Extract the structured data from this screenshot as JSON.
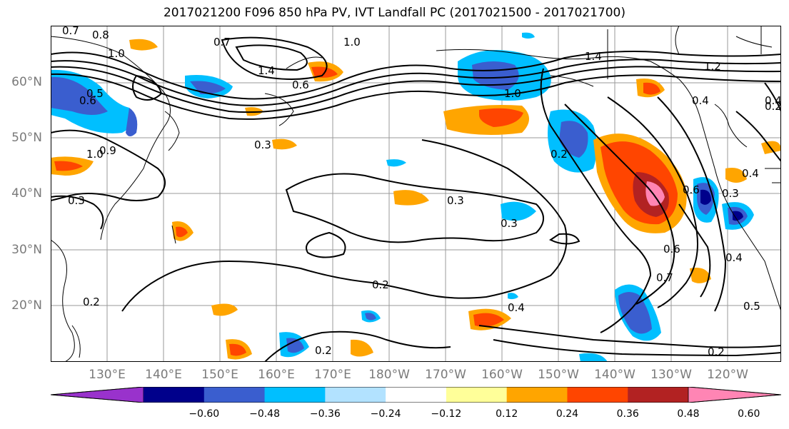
{
  "title": "2017021200 F096 850 hPa PV, IVT Landfall PC (2017021500 - 2017021700)",
  "map": {
    "lat_labels": [
      "60°N",
      "50°N",
      "40°N",
      "30°N",
      "20°N"
    ],
    "lon_labels": [
      "130°E",
      "140°E",
      "150°E",
      "160°E",
      "170°E",
      "180°W",
      "170°W",
      "160°W",
      "150°W",
      "140°W",
      "130°W",
      "120°W"
    ],
    "contour_labels": [
      "0.7",
      "0.8",
      "1.0",
      "0.5",
      "0.6",
      "0.7",
      "1.4",
      "0.6",
      "1.0",
      "0.9",
      "1.0",
      "1.4",
      "1.0",
      "1.2",
      "0.4",
      "0.2",
      "0.6",
      "0.3",
      "0.4",
      "0.3",
      "0.3",
      "0.3",
      "0.3",
      "0.2",
      "0.4",
      "0.2",
      "0.2",
      "0.6",
      "0.7",
      "0.4",
      "0.5",
      "0.2",
      "0.2",
      "0.4"
    ]
  },
  "colorbar": {
    "colors": [
      "#9932cc",
      "#00008b",
      "#3a5ecf",
      "#00bfff",
      "#b2e2ff",
      "#ffffff",
      "#ffff99",
      "#ffa500",
      "#ff4500",
      "#b22222",
      "#ff85b4"
    ],
    "ticks": [
      "−0.60",
      "−0.48",
      "−0.36",
      "−0.24",
      "−0.12",
      "0.12",
      "0.24",
      "0.36",
      "0.48",
      "0.60"
    ]
  }
}
